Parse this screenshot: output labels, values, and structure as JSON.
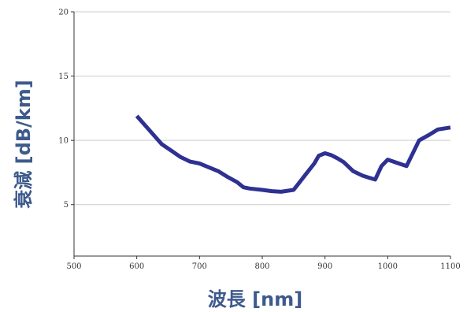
{
  "chart_data": {
    "type": "line",
    "xlabel": "波長 [nm]",
    "ylabel": "衰減 [dB/km]",
    "xlim": [
      500,
      1100
    ],
    "ylim": [
      1,
      20
    ],
    "x_ticks": [
      500,
      600,
      700,
      800,
      900,
      1000,
      1100
    ],
    "y_ticks": [
      5,
      10,
      15,
      20
    ],
    "grid": "horizontal",
    "colors": {
      "line": "#2e3191",
      "label": "#3d5a8c",
      "grid": "#cccccc",
      "axis": "#333333"
    },
    "series": [
      {
        "x": [
          600,
          620,
          640,
          655,
          670,
          685,
          700,
          715,
          730,
          745,
          760,
          770,
          780,
          800,
          815,
          830,
          850,
          870,
          883,
          890,
          900,
          910,
          920,
          930,
          945,
          960,
          970,
          980,
          990,
          1000,
          1015,
          1030,
          1050,
          1065,
          1080,
          1100
        ],
        "y": [
          11.9,
          10.8,
          9.7,
          9.2,
          8.7,
          8.35,
          8.2,
          7.9,
          7.6,
          7.15,
          6.75,
          6.35,
          6.25,
          6.15,
          6.05,
          6.0,
          6.15,
          7.4,
          8.2,
          8.8,
          9.0,
          8.85,
          8.6,
          8.3,
          7.6,
          7.25,
          7.1,
          6.95,
          8.0,
          8.5,
          8.25,
          8.0,
          10.0,
          10.4,
          10.85,
          11.0
        ]
      }
    ]
  }
}
